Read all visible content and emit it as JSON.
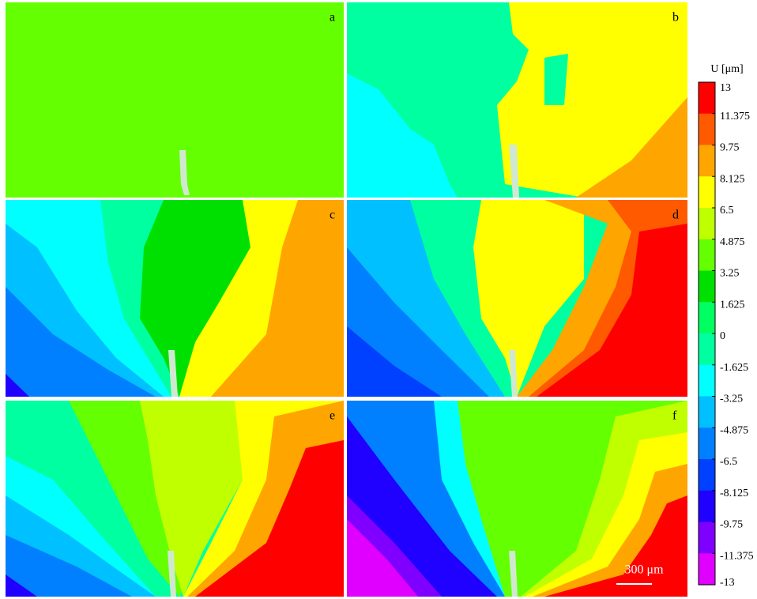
{
  "panels": [
    {
      "label": "a"
    },
    {
      "label": "b"
    },
    {
      "label": "c"
    },
    {
      "label": "d"
    },
    {
      "label": "e"
    },
    {
      "label": "f"
    }
  ],
  "colorbar": {
    "title": "U  [μm]",
    "ticks": [
      13,
      11.375,
      9.75,
      8.125,
      6.5,
      4.875,
      3.25,
      1.625,
      0,
      -1.625,
      -3.25,
      -4.875,
      -6.5,
      -8.125,
      -9.75,
      -11.375,
      -13
    ],
    "colors": [
      "#ff0000",
      "#ff5a00",
      "#ffa500",
      "#ffff00",
      "#c0ff00",
      "#64ff00",
      "#00e000",
      "#00ff60",
      "#00ffa0",
      "#00ffff",
      "#00c0ff",
      "#0080ff",
      "#0040ff",
      "#2000ff",
      "#8000ff",
      "#e000ff"
    ]
  },
  "scale_bar": "300 μm"
}
